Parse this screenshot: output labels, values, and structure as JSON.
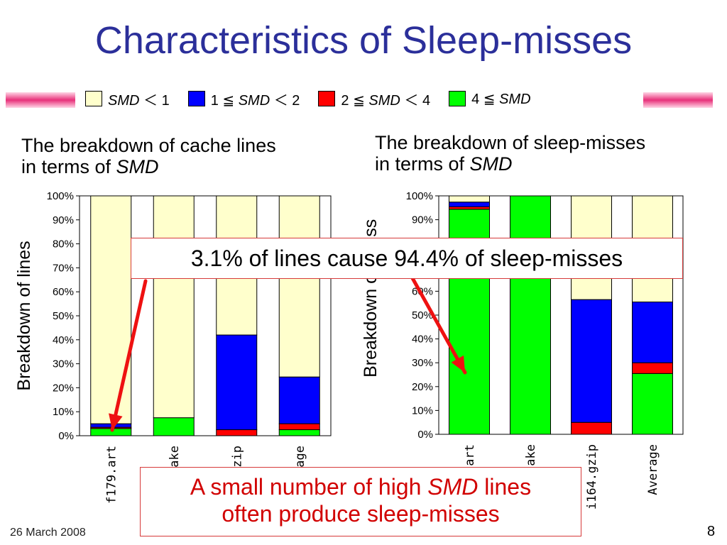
{
  "slide": {
    "title": "Characteristics of Sleep-misses",
    "footer_date": "26 March 2008",
    "page_number": "8"
  },
  "legend": [
    {
      "pre": "",
      "em": "SMD",
      "post": " ＜ 1",
      "color": "#ffffcc"
    },
    {
      "pre": "1 ≦ ",
      "em": "SMD",
      "post": " ＜ 2",
      "color": "#0000ff"
    },
    {
      "pre": "2 ≦ ",
      "em": "SMD",
      "post": " ＜ 4",
      "color": "#ff0000"
    },
    {
      "pre": "4 ≦ ",
      "em": "SMD",
      "post": "",
      "color": "#00ff00"
    }
  ],
  "panels": {
    "left": {
      "title_line1": "The breakdown of cache lines",
      "title_line2_pre": "in terms of ",
      "title_line2_em": "SMD"
    },
    "right": {
      "title_line1": "The breakdown of sleep-misses",
      "title_line2_pre": "in terms of ",
      "title_line2_em": "SMD"
    }
  },
  "callouts": {
    "top": "3.1% of lines cause 94.4% of sleep-misses",
    "bottom_line1_pre": "A small number of high ",
    "bottom_line1_em": "SMD",
    "bottom_line1_post": " lines",
    "bottom_line2": "often produce sleep-misses"
  },
  "arrow_color": "#ee1111",
  "chart_data": [
    {
      "type": "bar",
      "stacked": true,
      "ylabel": "Breakdown of lines",
      "ylim": [
        0,
        100
      ],
      "yticks": [
        "0%",
        "10%",
        "20%",
        "30%",
        "40%",
        "50%",
        "60%",
        "70%",
        "80%",
        "90%",
        "100%"
      ],
      "categories": [
        "f179.art",
        "ake",
        "gzip",
        "age"
      ],
      "series": [
        {
          "name": "4 ≦ SMD",
          "color": "#00ff00",
          "values": [
            3,
            7.5,
            0,
            2.5
          ]
        },
        {
          "name": "2 ≦ SMD ＜ 4",
          "color": "#ff0000",
          "values": [
            0.5,
            0,
            2.5,
            2.5
          ]
        },
        {
          "name": "1 ≦ SMD ＜ 2",
          "color": "#0000ff",
          "values": [
            1.5,
            0,
            39.5,
            19.5
          ]
        },
        {
          "name": "SMD ＜ 1",
          "color": "#ffffcc",
          "values": [
            95,
            92.5,
            58,
            75.5
          ]
        }
      ]
    },
    {
      "type": "bar",
      "stacked": true,
      "ylabel": "Breakdown of sle",
      "ylabel_top": "iss",
      "ylim": [
        0,
        100
      ],
      "yticks": [
        "0%",
        "10%",
        "20%",
        "30%",
        "40%",
        "50%",
        "60%",
        "70%",
        "80%",
        "90%",
        "100%"
      ],
      "categories": [
        "art",
        "ake",
        "i164.gzip",
        "Average"
      ],
      "series": [
        {
          "name": "4 ≦ SMD",
          "color": "#00ff00",
          "values": [
            94.4,
            100,
            0,
            25.5
          ]
        },
        {
          "name": "2 ≦ SMD ＜ 4",
          "color": "#ff0000",
          "values": [
            1,
            0,
            5,
            4.5
          ]
        },
        {
          "name": "1 ≦ SMD ＜ 2",
          "color": "#0000ff",
          "values": [
            2,
            0,
            51.5,
            25.5
          ]
        },
        {
          "name": "SMD ＜ 1",
          "color": "#ffffcc",
          "values": [
            2.6,
            0,
            43.5,
            44.5
          ]
        }
      ]
    }
  ]
}
